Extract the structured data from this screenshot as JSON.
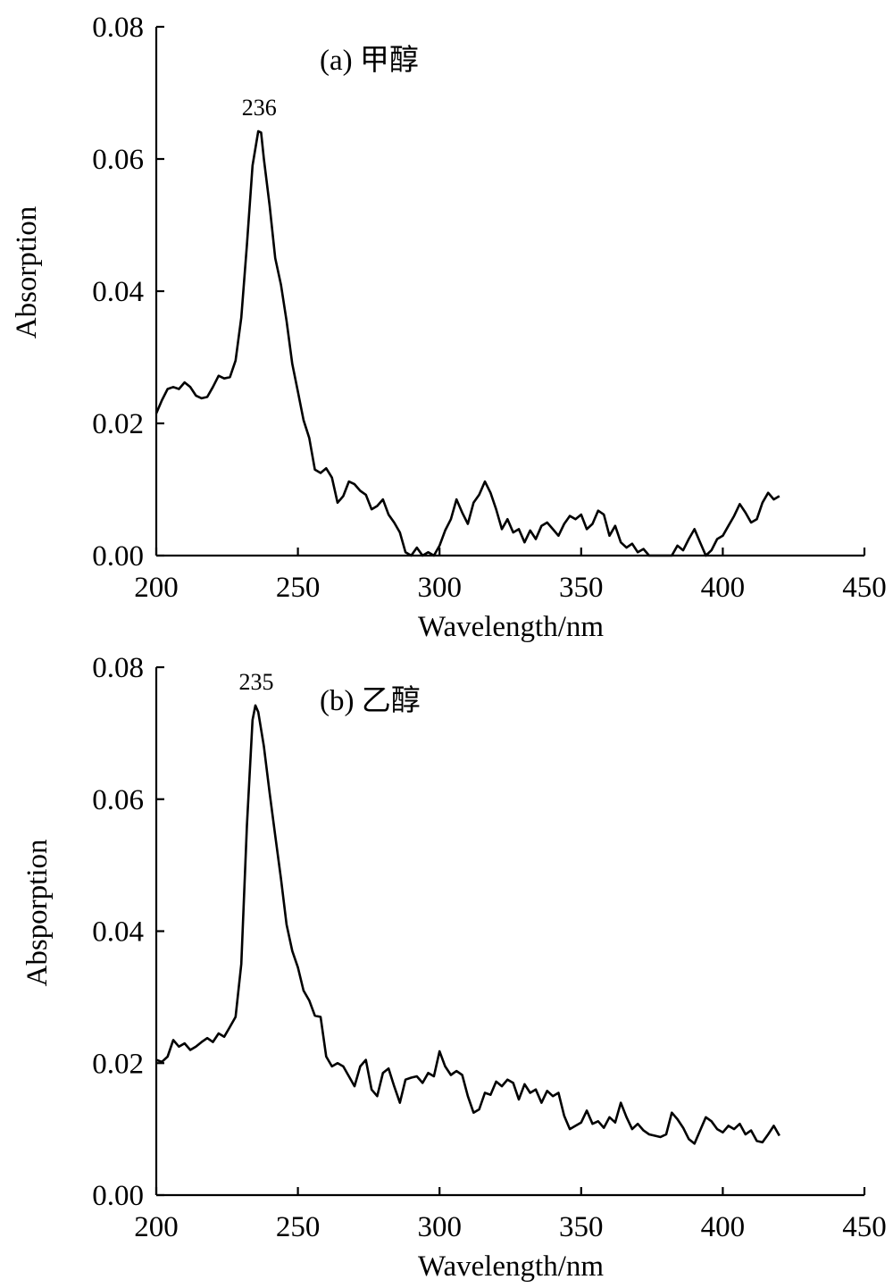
{
  "chart_data": [
    {
      "type": "line",
      "panel_label": "(a) 甲醇",
      "peak_label": "236",
      "peak_x": 236,
      "xlabel": "Wavelength/nm",
      "ylabel": "Absorption",
      "xlim": [
        200,
        450
      ],
      "ylim": [
        0,
        0.08
      ],
      "x_ticks": [
        "200",
        "250",
        "300",
        "350",
        "400",
        "450"
      ],
      "y_ticks": [
        "0.00",
        "0.02",
        "0.04",
        "0.06",
        "0.08"
      ],
      "series": [
        {
          "points": [
            [
              200,
              0.0215
            ],
            [
              202,
              0.0235
            ],
            [
              204,
              0.0252
            ],
            [
              206,
              0.0255
            ],
            [
              208,
              0.0252
            ],
            [
              210,
              0.0262
            ],
            [
              212,
              0.0255
            ],
            [
              214,
              0.0242
            ],
            [
              216,
              0.0238
            ],
            [
              218,
              0.024
            ],
            [
              220,
              0.0255
            ],
            [
              222,
              0.0272
            ],
            [
              224,
              0.0268
            ],
            [
              226,
              0.027
            ],
            [
              228,
              0.0295
            ],
            [
              230,
              0.036
            ],
            [
              232,
              0.047
            ],
            [
              234,
              0.059
            ],
            [
              236,
              0.0642
            ],
            [
              237,
              0.064
            ],
            [
              238,
              0.06
            ],
            [
              240,
              0.053
            ],
            [
              242,
              0.045
            ],
            [
              244,
              0.041
            ],
            [
              246,
              0.0355
            ],
            [
              248,
              0.029
            ],
            [
              250,
              0.0248
            ],
            [
              252,
              0.0205
            ],
            [
              254,
              0.0178
            ],
            [
              256,
              0.013
            ],
            [
              258,
              0.0125
            ],
            [
              260,
              0.0132
            ],
            [
              262,
              0.0118
            ],
            [
              264,
              0.008
            ],
            [
              266,
              0.009
            ],
            [
              268,
              0.0112
            ],
            [
              270,
              0.0108
            ],
            [
              272,
              0.0098
            ],
            [
              274,
              0.0092
            ],
            [
              276,
              0.007
            ],
            [
              278,
              0.0075
            ],
            [
              280,
              0.0085
            ],
            [
              282,
              0.0062
            ],
            [
              284,
              0.005
            ],
            [
              286,
              0.0035
            ],
            [
              288,
              0.0005
            ],
            [
              290,
              0.0
            ],
            [
              292,
              0.0012
            ],
            [
              294,
              0.0
            ],
            [
              296,
              0.0005
            ],
            [
              298,
              0.0
            ],
            [
              300,
              0.0015
            ],
            [
              302,
              0.0038
            ],
            [
              304,
              0.0055
            ],
            [
              306,
              0.0085
            ],
            [
              308,
              0.0065
            ],
            [
              310,
              0.0048
            ],
            [
              312,
              0.008
            ],
            [
              314,
              0.0092
            ],
            [
              316,
              0.0112
            ],
            [
              318,
              0.0095
            ],
            [
              320,
              0.007
            ],
            [
              322,
              0.004
            ],
            [
              324,
              0.0055
            ],
            [
              326,
              0.0035
            ],
            [
              328,
              0.004
            ],
            [
              330,
              0.002
            ],
            [
              332,
              0.0038
            ],
            [
              334,
              0.0025
            ],
            [
              336,
              0.0045
            ],
            [
              338,
              0.005
            ],
            [
              340,
              0.004
            ],
            [
              342,
              0.003
            ],
            [
              344,
              0.0048
            ],
            [
              346,
              0.006
            ],
            [
              348,
              0.0055
            ],
            [
              350,
              0.0062
            ],
            [
              352,
              0.004
            ],
            [
              354,
              0.0048
            ],
            [
              356,
              0.0068
            ],
            [
              358,
              0.0062
            ],
            [
              360,
              0.003
            ],
            [
              362,
              0.0045
            ],
            [
              364,
              0.002
            ],
            [
              366,
              0.0012
            ],
            [
              368,
              0.0018
            ],
            [
              370,
              0.0005
            ],
            [
              372,
              0.001
            ],
            [
              374,
              0.0
            ],
            [
              376,
              0.0
            ],
            [
              380,
              0.0
            ],
            [
              382,
              0.0
            ],
            [
              384,
              0.0015
            ],
            [
              386,
              0.0008
            ],
            [
              388,
              0.0025
            ],
            [
              390,
              0.004
            ],
            [
              392,
              0.002
            ],
            [
              394,
              0.0
            ],
            [
              396,
              0.0008
            ],
            [
              398,
              0.0025
            ],
            [
              400,
              0.003
            ],
            [
              402,
              0.0045
            ],
            [
              404,
              0.006
            ],
            [
              406,
              0.0078
            ],
            [
              408,
              0.0065
            ],
            [
              410,
              0.005
            ],
            [
              412,
              0.0055
            ],
            [
              414,
              0.008
            ],
            [
              416,
              0.0095
            ],
            [
              418,
              0.0085
            ],
            [
              420,
              0.009
            ]
          ]
        }
      ]
    },
    {
      "type": "line",
      "panel_label": "(b) 乙醇",
      "peak_label": "235",
      "peak_x": 235,
      "xlabel": "Wavelength/nm",
      "ylabel": "Absporption",
      "xlim": [
        200,
        450
      ],
      "ylim": [
        0,
        0.08
      ],
      "x_ticks": [
        "200",
        "250",
        "300",
        "350",
        "400",
        "450"
      ],
      "y_ticks": [
        "0.00",
        "0.02",
        "0.04",
        "0.06",
        "0.08"
      ],
      "series": [
        {
          "points": [
            [
              200,
              0.0205
            ],
            [
              202,
              0.0202
            ],
            [
              204,
              0.021
            ],
            [
              206,
              0.0235
            ],
            [
              208,
              0.0225
            ],
            [
              210,
              0.023
            ],
            [
              212,
              0.022
            ],
            [
              214,
              0.0225
            ],
            [
              216,
              0.0232
            ],
            [
              218,
              0.0238
            ],
            [
              220,
              0.0232
            ],
            [
              222,
              0.0245
            ],
            [
              224,
              0.024
            ],
            [
              226,
              0.0255
            ],
            [
              228,
              0.027
            ],
            [
              230,
              0.035
            ],
            [
              232,
              0.056
            ],
            [
              234,
              0.072
            ],
            [
              235,
              0.0742
            ],
            [
              236,
              0.0732
            ],
            [
              238,
              0.068
            ],
            [
              240,
              0.061
            ],
            [
              242,
              0.0545
            ],
            [
              244,
              0.048
            ],
            [
              246,
              0.041
            ],
            [
              248,
              0.037
            ],
            [
              250,
              0.0345
            ],
            [
              252,
              0.031
            ],
            [
              254,
              0.0295
            ],
            [
              256,
              0.0272
            ],
            [
              258,
              0.027
            ],
            [
              260,
              0.021
            ],
            [
              262,
              0.0195
            ],
            [
              264,
              0.02
            ],
            [
              266,
              0.0195
            ],
            [
              268,
              0.018
            ],
            [
              270,
              0.0165
            ],
            [
              272,
              0.0195
            ],
            [
              274,
              0.0205
            ],
            [
              276,
              0.016
            ],
            [
              278,
              0.015
            ],
            [
              280,
              0.0185
            ],
            [
              282,
              0.0192
            ],
            [
              284,
              0.0165
            ],
            [
              286,
              0.014
            ],
            [
              288,
              0.0175
            ],
            [
              290,
              0.0178
            ],
            [
              292,
              0.018
            ],
            [
              294,
              0.017
            ],
            [
              296,
              0.0185
            ],
            [
              298,
              0.018
            ],
            [
              300,
              0.0218
            ],
            [
              302,
              0.0195
            ],
            [
              304,
              0.0182
            ],
            [
              306,
              0.0188
            ],
            [
              308,
              0.0182
            ],
            [
              310,
              0.015
            ],
            [
              312,
              0.0125
            ],
            [
              314,
              0.013
            ],
            [
              316,
              0.0155
            ],
            [
              318,
              0.0152
            ],
            [
              320,
              0.0172
            ],
            [
              322,
              0.0165
            ],
            [
              324,
              0.0175
            ],
            [
              326,
              0.017
            ],
            [
              328,
              0.0145
            ],
            [
              330,
              0.0168
            ],
            [
              332,
              0.0155
            ],
            [
              334,
              0.016
            ],
            [
              336,
              0.014
            ],
            [
              338,
              0.0158
            ],
            [
              340,
              0.015
            ],
            [
              342,
              0.0155
            ],
            [
              344,
              0.012
            ],
            [
              346,
              0.01
            ],
            [
              348,
              0.0105
            ],
            [
              350,
              0.011
            ],
            [
              352,
              0.0128
            ],
            [
              354,
              0.0108
            ],
            [
              356,
              0.0112
            ],
            [
              358,
              0.0102
            ],
            [
              360,
              0.0118
            ],
            [
              362,
              0.011
            ],
            [
              364,
              0.014
            ],
            [
              366,
              0.0118
            ],
            [
              368,
              0.01
            ],
            [
              370,
              0.0108
            ],
            [
              372,
              0.0098
            ],
            [
              374,
              0.0092
            ],
            [
              376,
              0.009
            ],
            [
              378,
              0.0088
            ],
            [
              380,
              0.0092
            ],
            [
              382,
              0.0125
            ],
            [
              384,
              0.0115
            ],
            [
              386,
              0.0102
            ],
            [
              388,
              0.0085
            ],
            [
              390,
              0.0078
            ],
            [
              392,
              0.0098
            ],
            [
              394,
              0.0118
            ],
            [
              396,
              0.0112
            ],
            [
              398,
              0.01
            ],
            [
              400,
              0.0095
            ],
            [
              402,
              0.0105
            ],
            [
              404,
              0.01
            ],
            [
              406,
              0.0108
            ],
            [
              408,
              0.0092
            ],
            [
              410,
              0.0098
            ],
            [
              412,
              0.0082
            ],
            [
              414,
              0.008
            ],
            [
              416,
              0.0092
            ],
            [
              418,
              0.0105
            ],
            [
              420,
              0.009
            ]
          ]
        }
      ]
    }
  ]
}
